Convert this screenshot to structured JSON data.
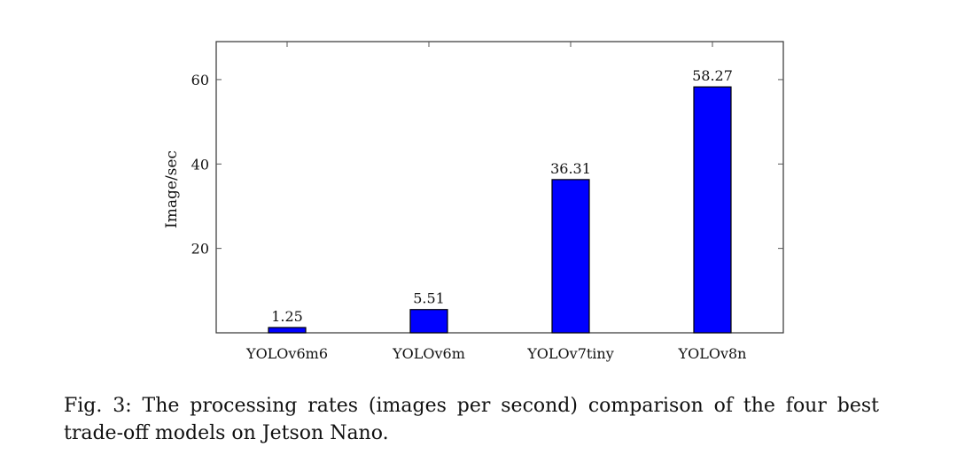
{
  "figure": {
    "caption": "Fig. 3: The processing rates (images per second) comparison of the four best trade-off models on Jetson Nano."
  },
  "chart_data": {
    "type": "bar",
    "categories": [
      "YOLOv6m6",
      "YOLOv6m",
      "YOLOv7tiny",
      "YOLOv8n"
    ],
    "values": [
      1.25,
      5.51,
      36.31,
      58.27
    ],
    "data_labels": [
      "1.25",
      "5.51",
      "36.31",
      "58.27"
    ],
    "ylabel": "Image/sec",
    "yticks": [
      20,
      40,
      60
    ],
    "ylim": [
      0,
      69
    ],
    "bar_color": "#0000ff",
    "bar_edge_color": "#000000",
    "grid": false,
    "legend": "none"
  }
}
